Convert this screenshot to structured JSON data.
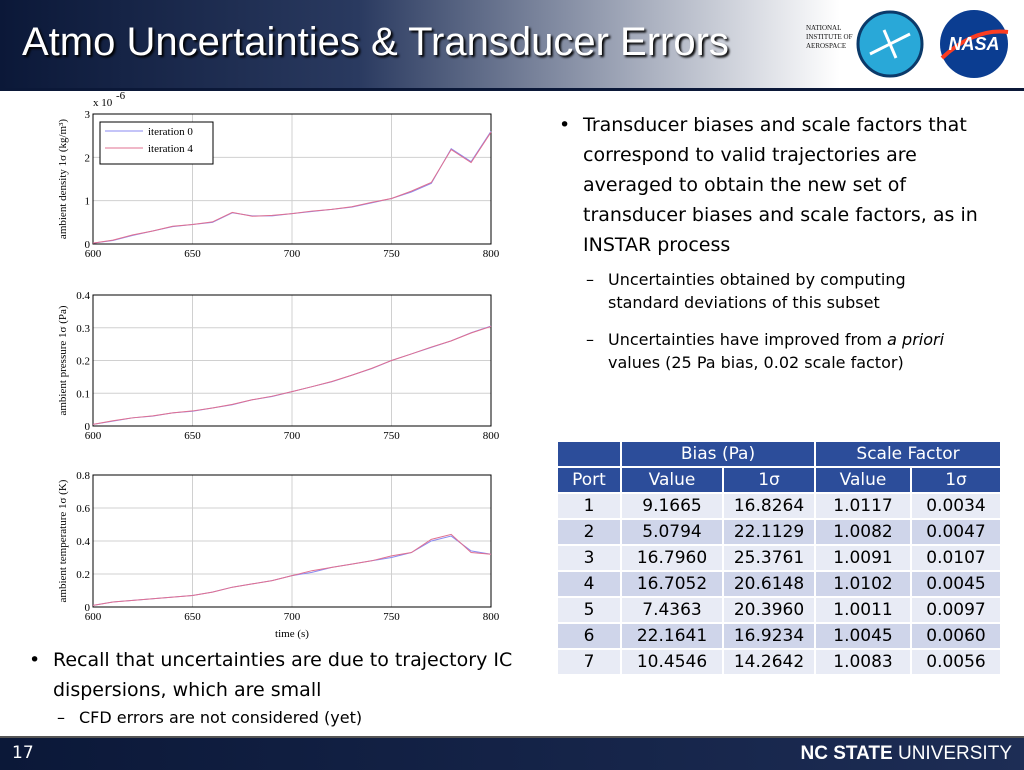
{
  "header": {
    "title": "Atmo Uncertainties & Transducer Errors",
    "logos": [
      "NATIONAL INSTITUTE OF AEROSPACE",
      "NASA"
    ]
  },
  "bullets_right": {
    "text": "Transducer biases and scale factors that correspond to valid trajectories are averaged to obtain the new set of transducer biases and scale factors, as in INSTAR process",
    "sub": [
      {
        "parts": [
          "Uncertainties obtained by computing standard deviations of this subset"
        ]
      },
      {
        "parts": [
          "Uncertainties have improved from ",
          "a priori",
          " values (25 Pa bias, 0.02 scale factor)"
        ]
      }
    ]
  },
  "bullets_left": {
    "text": "Recall that uncertainties are due to trajectory IC dispersions, which are small",
    "sub": [
      "CFD errors are not considered (yet)"
    ]
  },
  "table": {
    "groups": [
      "Bias (Pa)",
      "Scale Factor"
    ],
    "columns": [
      "Port",
      "Value",
      "1σ",
      "Value",
      "1σ"
    ],
    "rows": [
      [
        "1",
        "9.1665",
        "16.8264",
        "1.0117",
        "0.0034"
      ],
      [
        "2",
        "5.0794",
        "22.1129",
        "1.0082",
        "0.0047"
      ],
      [
        "3",
        "16.7960",
        "25.3761",
        "1.0091",
        "0.0107"
      ],
      [
        "4",
        "16.7052",
        "20.6148",
        "1.0102",
        "0.0045"
      ],
      [
        "5",
        "7.4363",
        "20.3960",
        "1.0011",
        "0.0097"
      ],
      [
        "6",
        "22.1641",
        "16.9234",
        "1.0045",
        "0.0060"
      ],
      [
        "7",
        "10.4546",
        "14.2642",
        "1.0083",
        "0.0056"
      ]
    ]
  },
  "footer": {
    "page_number": "17",
    "school_bold": "NC STATE",
    "school": "UNIVERSITY"
  },
  "chart_data": [
    {
      "type": "line",
      "y_label": "ambient density 1σ (kg/m³)",
      "y_scale_label": "x 10",
      "y_scale_exponent": "-6",
      "x": [
        600,
        610,
        620,
        630,
        640,
        650,
        660,
        670,
        680,
        690,
        700,
        710,
        720,
        730,
        740,
        750,
        760,
        770,
        780,
        790,
        800
      ],
      "series": [
        {
          "name": "iteration 0",
          "color": "#8a8af0",
          "values": [
            0.02,
            0.08,
            0.2,
            0.3,
            0.4,
            0.45,
            0.5,
            0.72,
            0.65,
            0.65,
            0.7,
            0.75,
            0.8,
            0.85,
            0.95,
            1.05,
            1.2,
            1.4,
            2.2,
            1.9,
            2.6
          ]
        },
        {
          "name": "iteration 4",
          "color": "#e07090",
          "values": [
            0.02,
            0.09,
            0.21,
            0.3,
            0.41,
            0.45,
            0.51,
            0.73,
            0.64,
            0.66,
            0.7,
            0.76,
            0.8,
            0.86,
            0.96,
            1.05,
            1.22,
            1.42,
            2.18,
            1.88,
            2.58
          ]
        }
      ],
      "xlim": [
        600,
        800
      ],
      "xticks": [
        600,
        650,
        700,
        750,
        800
      ],
      "ylim": [
        0,
        3
      ],
      "yticks": [
        0,
        1,
        2,
        3
      ],
      "grid": true
    },
    {
      "type": "line",
      "y_label": "ambient pressure 1σ (Pa)",
      "x": [
        600,
        610,
        620,
        630,
        640,
        650,
        660,
        670,
        680,
        690,
        700,
        710,
        720,
        730,
        740,
        750,
        760,
        770,
        780,
        790,
        800
      ],
      "series": [
        {
          "color": "#8a8af0",
          "values": [
            0.005,
            0.015,
            0.025,
            0.03,
            0.04,
            0.045,
            0.055,
            0.065,
            0.08,
            0.09,
            0.105,
            0.12,
            0.135,
            0.155,
            0.175,
            0.2,
            0.22,
            0.24,
            0.26,
            0.285,
            0.305
          ]
        },
        {
          "color": "#e07090",
          "values": [
            0.005,
            0.016,
            0.025,
            0.031,
            0.04,
            0.046,
            0.055,
            0.066,
            0.08,
            0.091,
            0.105,
            0.12,
            0.136,
            0.155,
            0.176,
            0.2,
            0.22,
            0.241,
            0.26,
            0.284,
            0.304
          ]
        }
      ],
      "xlim": [
        600,
        800
      ],
      "xticks": [
        600,
        650,
        700,
        750,
        800
      ],
      "ylim": [
        0,
        0.4
      ],
      "yticks": [
        0,
        0.1,
        0.2,
        0.3,
        0.4
      ],
      "grid": true
    },
    {
      "type": "line",
      "y_label": "ambient temperature 1σ (K)",
      "x_label": "time (s)",
      "x": [
        600,
        610,
        620,
        630,
        640,
        650,
        660,
        670,
        680,
        690,
        700,
        710,
        720,
        730,
        740,
        750,
        760,
        770,
        780,
        790,
        800
      ],
      "series": [
        {
          "color": "#8a8af0",
          "values": [
            0.01,
            0.03,
            0.04,
            0.05,
            0.06,
            0.07,
            0.09,
            0.12,
            0.14,
            0.16,
            0.19,
            0.21,
            0.24,
            0.26,
            0.28,
            0.3,
            0.33,
            0.4,
            0.43,
            0.34,
            0.32
          ]
        },
        {
          "color": "#e07090",
          "values": [
            0.01,
            0.03,
            0.04,
            0.05,
            0.06,
            0.07,
            0.09,
            0.12,
            0.14,
            0.16,
            0.19,
            0.22,
            0.24,
            0.26,
            0.28,
            0.31,
            0.33,
            0.41,
            0.44,
            0.33,
            0.32
          ]
        }
      ],
      "xlim": [
        600,
        800
      ],
      "xticks": [
        600,
        650,
        700,
        750,
        800
      ],
      "ylim": [
        0,
        0.8
      ],
      "yticks": [
        0,
        0.2,
        0.4,
        0.6,
        0.8
      ],
      "grid": true
    }
  ]
}
